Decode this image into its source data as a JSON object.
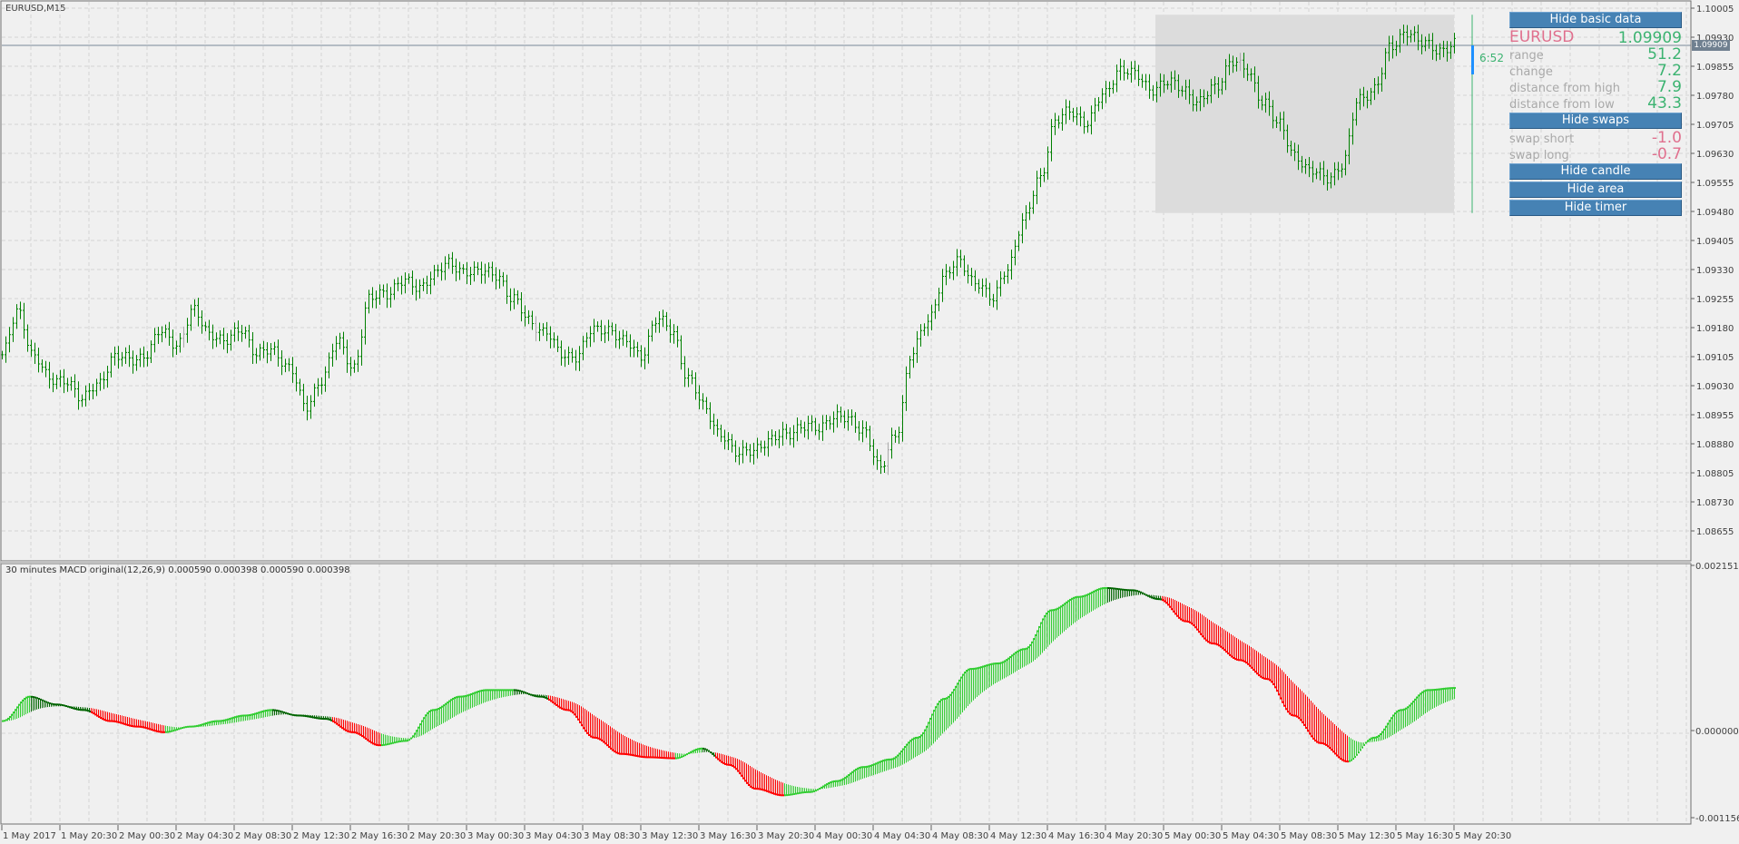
{
  "chart": {
    "title": "EURUSD,M15",
    "current_price": "1.09909",
    "timer": "6:52",
    "macd_title": "30 minutes MACD original(12,26,9) 0.000590 0.000398 0.000590 0.000398"
  },
  "panel": {
    "hide_basic_data": "Hide basic data",
    "symbol": "EURUSD",
    "price": "1.09909",
    "rows": [
      {
        "label": "range",
        "value": "51.2"
      },
      {
        "label": "change",
        "value": "7.2"
      },
      {
        "label": "distance from high",
        "value": "7.9"
      },
      {
        "label": "distance from low",
        "value": "43.3"
      }
    ],
    "hide_swaps": "Hide swaps",
    "swaps": [
      {
        "label": "swap short",
        "value": "-1.0"
      },
      {
        "label": "swap long",
        "value": "-0.7"
      }
    ],
    "hide_candle": "Hide candle",
    "hide_area": "Hide area",
    "hide_timer": "Hide timer"
  },
  "colors": {
    "bar": "#008000",
    "macd_up": "#32cd32",
    "macd_down": "#ff0000",
    "macd_neutral": "#006400",
    "button": "#4682b4",
    "symbol": "#e0708e",
    "value_positive": "#3cb371",
    "area": "#dcdcdc",
    "candle_marker": "#1e90ff"
  },
  "chart_data": [
    {
      "type": "bar",
      "subtype": "ohlc",
      "symbol": "EURUSD",
      "timeframe": "M15",
      "ylim": [
        1.08655,
        1.10005
      ],
      "y_ticks": [
        "1.10005",
        "1.09930",
        "1.09855",
        "1.09780",
        "1.09705",
        "1.09630",
        "1.09555",
        "1.09480",
        "1.09405",
        "1.09330",
        "1.09255",
        "1.09180",
        "1.09105",
        "1.09030",
        "1.08955",
        "1.08880",
        "1.08805",
        "1.08730",
        "1.08655"
      ],
      "x_ticks": [
        "1 May 2017",
        "1 May 20:30",
        "2 May 00:30",
        "2 May 04:30",
        "2 May 08:30",
        "2 May 12:30",
        "2 May 16:30",
        "2 May 20:30",
        "3 May 00:30",
        "3 May 04:30",
        "3 May 08:30",
        "3 May 12:30",
        "3 May 16:30",
        "3 May 20:30",
        "4 May 00:30",
        "4 May 04:30",
        "4 May 08:30",
        "4 May 12:30",
        "4 May 16:30",
        "4 May 20:30",
        "5 May 00:30",
        "5 May 04:30",
        "5 May 08:30",
        "5 May 12:30",
        "5 May 16:30",
        "5 May 20:30"
      ],
      "close_path": [
        1.0911,
        1.0922,
        1.0911,
        1.0904,
        1.0905,
        1.0899,
        1.0904,
        1.091,
        1.091,
        1.0911,
        1.0917,
        1.0914,
        1.0922,
        1.0917,
        1.0914,
        1.0918,
        1.0911,
        1.0912,
        1.0908,
        1.0897,
        1.0905,
        1.0914,
        1.0908,
        1.0925,
        1.0927,
        1.093,
        1.0928,
        1.0932,
        1.0934,
        1.0933,
        1.0932,
        1.0932,
        1.0925,
        1.092,
        1.0917,
        1.0911,
        1.0911,
        1.0917,
        1.0918,
        1.0914,
        1.0911,
        1.092,
        1.0917,
        1.0905,
        1.0897,
        1.0891,
        1.0885,
        1.0887,
        1.0888,
        1.0891,
        1.0892,
        1.0892,
        1.0895,
        1.0894,
        1.0892,
        1.0881,
        1.0891,
        1.0911,
        1.092,
        1.0931,
        1.0935,
        1.093,
        1.0925,
        1.0934,
        1.0945,
        1.0957,
        1.0971,
        1.0974,
        1.0971,
        1.0978,
        1.0985,
        1.0983,
        1.098,
        1.0981,
        1.098,
        1.0976,
        1.098,
        1.0987,
        1.0984,
        1.0977,
        1.097,
        1.0963,
        1.0958,
        1.0957,
        1.096,
        1.0977,
        1.098,
        1.099,
        1.0995,
        1.0991,
        1.099,
        1.0991
      ],
      "day_high": 1.09988,
      "day_low": 1.09476,
      "current": 1.09909
    },
    {
      "type": "line",
      "name": "MACD original(12,26,9)",
      "ylim": [
        -0.001156,
        0.002151
      ],
      "y_ticks": [
        "0.002151",
        "0.000000",
        "-0.001156"
      ],
      "main_path": [
        0.000159,
        0.000477,
        0.000375,
        0.000303,
        0.000159,
        8.7e-05,
        1.4e-05,
        8.7e-05,
        0.000159,
        0.000231,
        0.000303,
        0.000231,
        0.000188,
        1.4e-05,
        -0.000159,
        -0.000101,
        0.000303,
        0.000477,
        0.000563,
        0.000563,
        0.000477,
        0.000303,
        -5.8e-05,
        -0.000274,
        -0.000318,
        -0.000332,
        -0.000202,
        -0.000419,
        -0.000736,
        -0.000823,
        -0.00078,
        -0.000635,
        -0.000448,
        -0.000347,
        -5.8e-05,
        0.000448,
        0.000838,
        0.00091,
        0.001097,
        0.001603,
        0.001776,
        0.001892,
        0.001863,
        0.001747,
        0.001458,
        0.001169,
        0.000953,
        0.000708,
        0.000231,
        -0.00013,
        -0.000375,
        -5.8e-05,
        0.000303,
        0.000563,
        0.00059
      ],
      "last_main": 0.00059,
      "last_signal": 0.000398
    }
  ]
}
